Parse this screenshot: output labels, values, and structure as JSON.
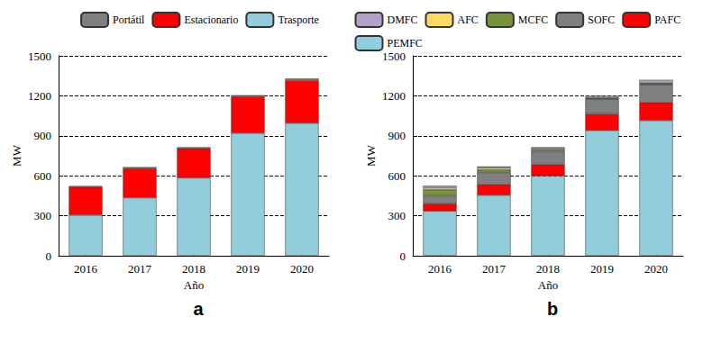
{
  "chart_data": [
    {
      "type": "bar",
      "title": "a",
      "x_label": "Año",
      "y_label": "MW",
      "categories": [
        "2016",
        "2017",
        "2018",
        "2019",
        "2020"
      ],
      "stacked": true,
      "grid": true,
      "legend": "top",
      "ylim": [
        0,
        1500
      ],
      "yticks": [
        0,
        300,
        600,
        900,
        1200,
        1500
      ],
      "series": [
        {
          "name": "Portátil",
          "color": "#7f7f7f",
          "values": [
            8,
            10,
            10,
            10,
            15
          ]
        },
        {
          "name": "Estacionario",
          "color": "#ff0000",
          "values": [
            210,
            220,
            220,
            275,
            320
          ]
        },
        {
          "name": "Trasporte",
          "color": "#92cddc",
          "values": [
            305,
            435,
            585,
            920,
            995
          ]
        }
      ]
    },
    {
      "type": "bar",
      "title": "b",
      "x_label": "Año",
      "y_label": "MW",
      "categories": [
        "2016",
        "2017",
        "2018",
        "2019",
        "2020"
      ],
      "stacked": true,
      "grid": true,
      "legend": "top",
      "ylim": [
        0,
        1500
      ],
      "yticks": [
        0,
        300,
        600,
        900,
        1200,
        1500
      ],
      "series": [
        {
          "name": "DMFC",
          "color": "#b3a2c7",
          "values": [
            15,
            10,
            10,
            15,
            25
          ]
        },
        {
          "name": "AFC",
          "color": "#ffd966",
          "values": [
            15,
            15,
            10,
            5,
            5
          ]
        },
        {
          "name": "MCFC",
          "color": "#77933c",
          "values": [
            45,
            20,
            15,
            5,
            5
          ]
        },
        {
          "name": "SOFC",
          "color": "#7f7f7f",
          "values": [
            60,
            90,
            95,
            110,
            135
          ]
        },
        {
          "name": "PAFC",
          "color": "#ff0000",
          "values": [
            55,
            80,
            85,
            125,
            135
          ]
        },
        {
          "name": "PEMFC",
          "color": "#92cddc",
          "values": [
            335,
            455,
            600,
            940,
            1015
          ]
        }
      ]
    }
  ]
}
